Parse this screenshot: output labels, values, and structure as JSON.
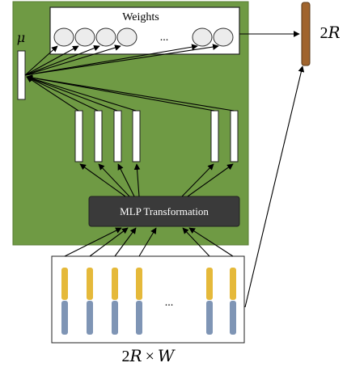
{
  "diagram": {
    "weights_title": "Weights",
    "weights_ellipsis": "...",
    "mu_label": "μ",
    "mlp_label": "MLP Transformation",
    "output_label_num": "2",
    "output_label_var": "R",
    "input_ellipsis": "...",
    "input_label": "2R × W",
    "input_label_num": "2",
    "input_label_r": "R",
    "input_label_times": "×",
    "input_label_w": "W"
  },
  "colors": {
    "panel": "#6f9a44",
    "panel_edge": "#5a7d35",
    "mlp_box": "#3a3a3a",
    "output_bar": "#a0642d",
    "input_top": "#e5b93a",
    "input_bottom": "#7f95b5"
  }
}
